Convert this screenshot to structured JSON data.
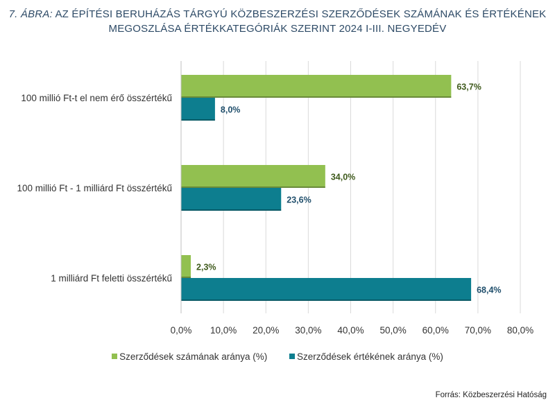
{
  "title_lead": "7. ÁBRA:",
  "title_rest_line1": "AZ ÉPÍTÉSI BERUHÁZÁS TÁRGYÚ KÖZBESZERZÉSI SZERZŐDÉSEK SZÁMÁNAK ÉS ÉRTÉKÉNEK",
  "title_line2": "MEGOSZLÁSA ÉRTÉKKATEGÓRIÁK SZERINT 2024 I-III. NEGYEDÉV",
  "source": "Forrás: Közbeszerzési Hatóság",
  "colors": {
    "green": "#92c050",
    "teal": "#0d7e8f",
    "title": "#2d4a66"
  },
  "chart_data": {
    "type": "bar",
    "orientation": "horizontal",
    "categories": [
      "100 millió Ft-t el nem érő összértékű",
      "100 millió Ft - 1 milliárd Ft összértékű",
      "1 milliárd Ft feletti összértékű"
    ],
    "series": [
      {
        "name": "Szerződések számának aránya (%)",
        "values": [
          63.7,
          34.0,
          2.3
        ],
        "labels": [
          "63,7%",
          "34,0%",
          "2,3%"
        ],
        "color": "#92c050"
      },
      {
        "name": "Szerződések értékének aránya (%)",
        "values": [
          8.0,
          23.6,
          68.4
        ],
        "labels": [
          "8,0%",
          "23,6%",
          "68,4%"
        ],
        "color": "#0d7e8f"
      }
    ],
    "xlim": [
      0,
      80
    ],
    "xticks": [
      "0,0%",
      "10,0%",
      "20,0%",
      "30,0%",
      "40,0%",
      "50,0%",
      "60,0%",
      "70,0%",
      "80,0%"
    ],
    "grid": true,
    "legend": "bottom"
  }
}
